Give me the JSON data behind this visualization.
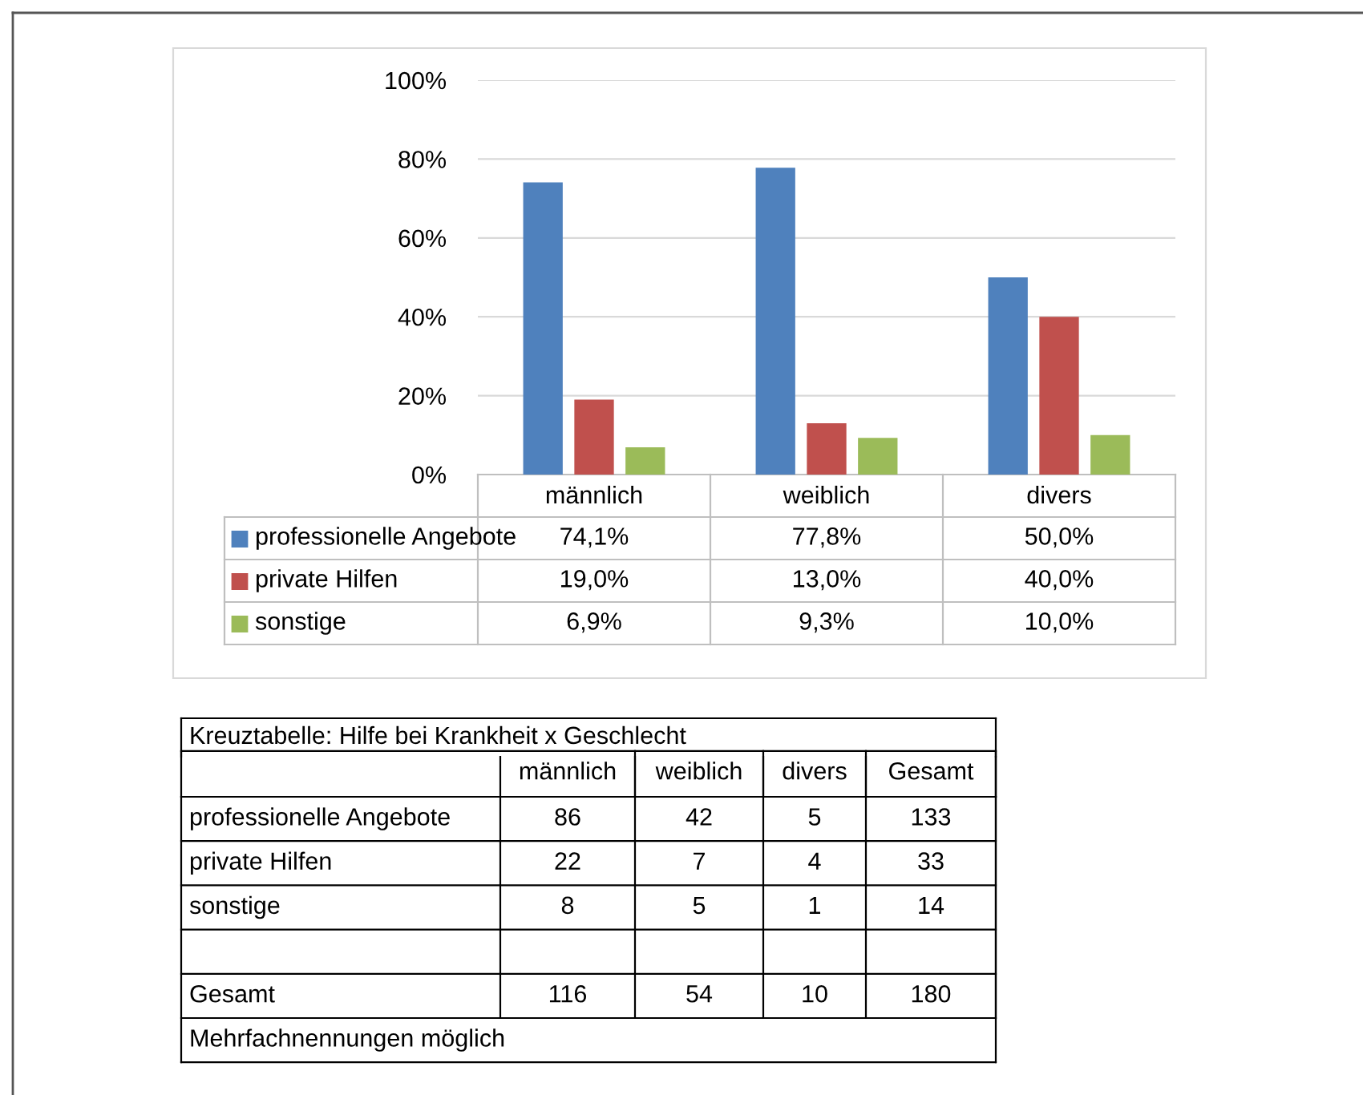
{
  "chart_data": [
    {
      "type": "bar",
      "categories": [
        "männlich",
        "weiblich",
        "divers"
      ],
      "series": [
        {
          "name": "professionelle Angebote",
          "color": "#4f81bd",
          "values": [
            74.1,
            77.8,
            50.0
          ],
          "value_labels": [
            "74,1%",
            "77,8%",
            "50,0%"
          ]
        },
        {
          "name": "private Hilfen",
          "color": "#c0504d",
          "values": [
            19.0,
            13.0,
            40.0
          ],
          "value_labels": [
            "19,0%",
            "13,0%",
            "40,0%"
          ]
        },
        {
          "name": "sonstige",
          "color": "#9bbb59",
          "values": [
            6.9,
            9.3,
            10.0
          ],
          "value_labels": [
            "6,9%",
            "9,3%",
            "10,0%"
          ]
        }
      ],
      "ylim": [
        0,
        100
      ],
      "yticks": [
        {
          "value": 0,
          "label": "0%"
        },
        {
          "value": 20,
          "label": "20%"
        },
        {
          "value": 40,
          "label": "40%"
        },
        {
          "value": 60,
          "label": "60%"
        },
        {
          "value": 80,
          "label": "80%"
        },
        {
          "value": 100,
          "label": "100%"
        }
      ],
      "grid": "y",
      "legend": "bottom"
    },
    {
      "type": "heatmap",
      "title": "Kreuztabelle: Hilfe bei Krankheit x Geschlecht",
      "categories": [
        "männlich",
        "weiblich",
        "divers",
        "Gesamt"
      ],
      "y_categories": [
        "professionelle Angebote",
        "private Hilfen",
        "sonstige",
        "Gesamt"
      ],
      "cells": [
        [
          86,
          42,
          5,
          133
        ],
        [
          22,
          7,
          4,
          33
        ],
        [
          8,
          5,
          1,
          14
        ],
        [
          116,
          54,
          10,
          180
        ]
      ],
      "data_labels": true,
      "annotations": [
        "Mehrfachnennungen möglich"
      ]
    }
  ]
}
